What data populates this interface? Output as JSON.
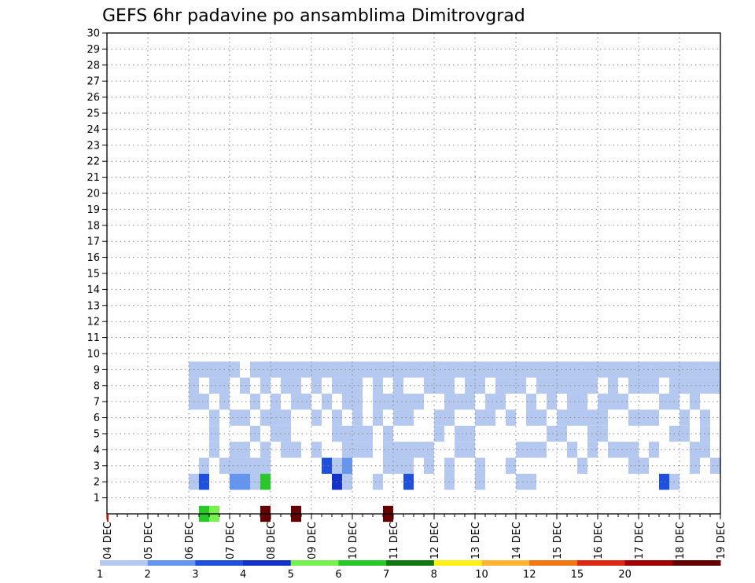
{
  "chart_data": {
    "type": "heatmap",
    "title": "GEFS 6hr padavine po ansamblima Dimitrovgrad",
    "y_ticks": [
      "1",
      "2",
      "3",
      "4",
      "5",
      "6",
      "7",
      "8",
      "9",
      "10",
      "11",
      "12",
      "13",
      "14",
      "15",
      "16",
      "17",
      "18",
      "19",
      "20",
      "21",
      "22",
      "23",
      "24",
      "25",
      "26",
      "27",
      "28",
      "29",
      "30"
    ],
    "y_range": [
      0,
      30
    ],
    "x_ticks": [
      "04 DEC",
      "05 DEC",
      "06 DEC",
      "07 DEC",
      "08 DEC",
      "09 DEC",
      "10 DEC",
      "11 DEC",
      "12 DEC",
      "13 DEC",
      "14 DEC",
      "15 DEC",
      "16 DEC",
      "17 DEC",
      "18 DEC",
      "19 DEC"
    ],
    "x_range_days": [
      0,
      15
    ],
    "steps_per_day": 4,
    "grid": true,
    "legend": "bottom",
    "color_scale": {
      "bounds": [
        "1",
        "2",
        "3",
        "4",
        "5",
        "6",
        "7",
        "8",
        "10",
        "12",
        "15",
        "20"
      ],
      "colors": [
        "#b4c8f0",
        "#6496f0",
        "#1e50dc",
        "#1432c8",
        "#78f050",
        "#28c828",
        "#127812",
        "#fff014",
        "#ffb432",
        "#f07814",
        "#dc2814",
        "#a00000",
        "#640000"
      ]
    },
    "cells": [
      [
        0,
        9,
        6,
        1
      ],
      [
        0,
        10,
        5,
        1
      ],
      [
        0,
        18,
        25,
        1
      ],
      [
        0,
        27,
        22,
        1
      ],
      [
        0,
        15,
        27,
        1
      ],
      [
        2,
        8,
        1,
        1
      ],
      [
        2,
        9,
        3,
        1
      ],
      [
        2,
        12,
        2,
        1
      ],
      [
        2,
        13,
        2,
        1
      ],
      [
        2,
        14,
        1,
        1
      ],
      [
        2,
        15,
        6,
        1
      ],
      [
        2,
        22,
        4,
        1
      ],
      [
        2,
        23,
        1,
        1
      ],
      [
        2,
        26,
        1,
        1
      ],
      [
        2,
        29,
        3,
        1
      ],
      [
        2,
        33,
        1,
        1
      ],
      [
        2,
        36,
        1,
        1
      ],
      [
        2,
        40,
        1,
        1
      ],
      [
        2,
        41,
        1,
        1
      ],
      [
        2,
        54,
        3,
        1
      ],
      [
        2,
        55,
        1,
        1
      ],
      [
        3,
        9,
        1,
        1
      ],
      [
        3,
        11,
        1,
        1
      ],
      [
        3,
        12,
        1,
        1
      ],
      [
        3,
        13,
        1,
        1
      ],
      [
        3,
        14,
        1,
        1
      ],
      [
        3,
        15,
        1,
        1
      ],
      [
        3,
        21,
        3,
        1
      ],
      [
        3,
        22,
        1,
        1
      ],
      [
        3,
        23,
        2,
        1
      ],
      [
        3,
        27,
        1,
        1
      ],
      [
        3,
        28,
        1,
        1
      ],
      [
        3,
        29,
        1,
        1
      ],
      [
        3,
        31,
        1,
        1
      ],
      [
        3,
        33,
        1,
        1
      ],
      [
        3,
        36,
        1,
        1
      ],
      [
        3,
        39,
        1,
        1
      ],
      [
        3,
        46,
        1,
        1
      ],
      [
        3,
        51,
        1,
        1
      ],
      [
        3,
        52,
        1,
        1
      ],
      [
        3,
        57,
        1,
        1
      ],
      [
        3,
        59,
        1,
        1
      ],
      [
        4,
        10,
        1,
        1
      ],
      [
        4,
        12,
        1,
        1
      ],
      [
        4,
        13,
        1,
        1
      ],
      [
        4,
        15,
        1,
        1
      ],
      [
        4,
        17,
        1,
        1
      ],
      [
        4,
        18,
        1,
        1
      ],
      [
        4,
        20,
        1,
        1
      ],
      [
        4,
        23,
        1,
        1
      ],
      [
        4,
        24,
        1,
        1
      ],
      [
        4,
        25,
        1,
        1
      ],
      [
        4,
        27,
        1,
        1
      ],
      [
        4,
        28,
        1,
        1
      ],
      [
        4,
        29,
        1,
        1
      ],
      [
        4,
        30,
        1,
        1
      ],
      [
        4,
        31,
        1,
        1
      ],
      [
        4,
        34,
        1,
        1
      ],
      [
        4,
        35,
        1,
        1
      ],
      [
        4,
        40,
        1,
        1
      ],
      [
        4,
        41,
        1,
        1
      ],
      [
        4,
        42,
        1,
        1
      ],
      [
        4,
        45,
        1,
        1
      ],
      [
        4,
        47,
        1,
        1
      ],
      [
        4,
        49,
        1,
        1
      ],
      [
        4,
        50,
        1,
        1
      ],
      [
        4,
        51,
        1,
        1
      ],
      [
        4,
        53,
        1,
        1
      ],
      [
        4,
        57,
        1,
        1
      ],
      [
        4,
        58,
        1,
        1
      ],
      [
        5,
        10,
        1,
        1
      ],
      [
        5,
        14,
        1,
        1
      ],
      [
        5,
        16,
        1,
        1
      ],
      [
        5,
        17,
        1,
        1
      ],
      [
        5,
        22,
        1,
        1
      ],
      [
        5,
        23,
        1,
        1
      ],
      [
        5,
        24,
        1,
        1
      ],
      [
        5,
        25,
        1,
        1
      ],
      [
        5,
        27,
        1,
        1
      ],
      [
        5,
        32,
        1,
        1
      ],
      [
        5,
        34,
        1,
        1
      ],
      [
        5,
        35,
        1,
        1
      ],
      [
        5,
        43,
        1,
        1
      ],
      [
        5,
        44,
        1,
        1
      ],
      [
        5,
        47,
        1,
        1
      ],
      [
        5,
        48,
        1,
        1
      ],
      [
        5,
        55,
        1,
        1
      ],
      [
        5,
        56,
        1,
        1
      ],
      [
        5,
        58,
        1,
        1
      ],
      [
        6,
        10,
        1,
        1
      ],
      [
        6,
        12,
        1,
        1
      ],
      [
        6,
        13,
        1,
        1
      ],
      [
        6,
        15,
        1,
        1
      ],
      [
        6,
        16,
        1,
        1
      ],
      [
        6,
        17,
        1,
        1
      ],
      [
        6,
        20,
        1,
        1
      ],
      [
        6,
        22,
        1,
        1
      ],
      [
        6,
        24,
        1,
        1
      ],
      [
        6,
        26,
        1,
        1
      ],
      [
        6,
        28,
        1,
        1
      ],
      [
        6,
        29,
        1,
        1
      ],
      [
        6,
        32,
        1,
        1
      ],
      [
        6,
        33,
        1,
        1
      ],
      [
        6,
        36,
        1,
        1
      ],
      [
        6,
        37,
        1,
        1
      ],
      [
        6,
        39,
        1,
        1
      ],
      [
        6,
        41,
        1,
        1
      ],
      [
        6,
        42,
        1,
        1
      ],
      [
        6,
        44,
        1,
        1
      ],
      [
        6,
        45,
        1,
        1
      ],
      [
        6,
        46,
        1,
        1
      ],
      [
        6,
        47,
        1,
        1
      ],
      [
        6,
        48,
        1,
        1
      ],
      [
        6,
        51,
        1,
        1
      ],
      [
        6,
        52,
        1,
        1
      ],
      [
        6,
        53,
        1,
        1
      ],
      [
        6,
        56,
        1,
        1
      ],
      [
        6,
        58,
        1,
        1
      ],
      [
        7,
        8,
        1,
        1
      ],
      [
        7,
        9,
        1,
        1
      ],
      [
        7,
        11,
        1,
        1
      ],
      [
        7,
        14,
        1,
        1
      ],
      [
        7,
        16,
        1,
        1
      ],
      [
        7,
        18,
        1,
        1
      ],
      [
        7,
        19,
        1,
        1
      ],
      [
        7,
        21,
        1,
        1
      ],
      [
        7,
        23,
        1,
        1
      ],
      [
        7,
        24,
        1,
        1
      ],
      [
        7,
        26,
        1,
        1
      ],
      [
        7,
        27,
        1,
        1
      ],
      [
        7,
        28,
        1,
        1
      ],
      [
        7,
        29,
        1,
        1
      ],
      [
        7,
        30,
        1,
        1
      ],
      [
        7,
        33,
        1,
        1
      ],
      [
        7,
        34,
        1,
        1
      ],
      [
        7,
        35,
        1,
        1
      ],
      [
        7,
        37,
        1,
        1
      ],
      [
        7,
        38,
        1,
        1
      ],
      [
        7,
        41,
        1,
        1
      ],
      [
        7,
        43,
        1,
        1
      ],
      [
        7,
        45,
        1,
        1
      ],
      [
        7,
        46,
        1,
        1
      ],
      [
        7,
        48,
        1,
        1
      ],
      [
        7,
        49,
        1,
        1
      ],
      [
        7,
        50,
        1,
        1
      ],
      [
        7,
        54,
        1,
        1
      ],
      [
        7,
        55,
        1,
        1
      ],
      [
        7,
        57,
        1,
        1
      ],
      [
        8,
        8,
        1,
        1
      ],
      [
        8,
        10,
        1,
        1
      ],
      [
        8,
        11,
        1,
        1
      ],
      [
        8,
        13,
        1,
        1
      ],
      [
        8,
        15,
        1,
        1
      ],
      [
        8,
        17,
        1,
        1
      ],
      [
        8,
        18,
        1,
        1
      ],
      [
        8,
        20,
        1,
        1
      ],
      [
        8,
        22,
        1,
        1
      ],
      [
        8,
        23,
        1,
        1
      ],
      [
        8,
        24,
        1,
        1
      ],
      [
        8,
        26,
        1,
        1
      ],
      [
        8,
        28,
        1,
        1
      ],
      [
        8,
        31,
        1,
        1
      ],
      [
        8,
        32,
        1,
        1
      ],
      [
        8,
        33,
        1,
        1
      ],
      [
        8,
        35,
        1,
        1
      ],
      [
        8,
        36,
        1,
        1
      ],
      [
        8,
        38,
        1,
        1
      ],
      [
        8,
        39,
        1,
        1
      ],
      [
        8,
        40,
        1,
        1
      ],
      [
        8,
        42,
        1,
        1
      ],
      [
        8,
        43,
        1,
        1
      ],
      [
        8,
        44,
        1,
        1
      ],
      [
        8,
        45,
        1,
        1
      ],
      [
        8,
        46,
        1,
        1
      ],
      [
        8,
        47,
        1,
        1
      ],
      [
        8,
        49,
        1,
        1
      ],
      [
        8,
        51,
        1,
        1
      ],
      [
        8,
        52,
        1,
        1
      ],
      [
        8,
        53,
        1,
        1
      ],
      [
        8,
        55,
        1,
        1
      ],
      [
        8,
        56,
        1,
        1
      ],
      [
        8,
        57,
        1,
        1
      ],
      [
        8,
        58,
        1,
        1
      ],
      [
        8,
        59,
        1,
        1
      ],
      [
        9,
        8,
        1,
        1
      ],
      [
        9,
        9,
        1,
        1
      ],
      [
        9,
        10,
        1,
        1
      ],
      [
        9,
        11,
        1,
        1
      ],
      [
        9,
        12,
        1,
        1
      ],
      [
        9,
        14,
        1,
        1
      ],
      [
        9,
        15,
        1,
        1
      ],
      [
        9,
        16,
        1,
        1
      ],
      [
        9,
        17,
        1,
        1
      ],
      [
        9,
        18,
        1,
        1
      ],
      [
        9,
        19,
        1,
        1
      ],
      [
        9,
        20,
        1,
        1
      ],
      [
        9,
        21,
        1,
        1
      ],
      [
        9,
        22,
        1,
        1
      ],
      [
        9,
        23,
        1,
        1
      ],
      [
        9,
        24,
        1,
        1
      ],
      [
        9,
        25,
        1,
        1
      ],
      [
        9,
        26,
        1,
        1
      ],
      [
        9,
        27,
        1,
        1
      ],
      [
        9,
        28,
        1,
        1
      ],
      [
        9,
        29,
        1,
        1
      ],
      [
        9,
        30,
        1,
        1
      ],
      [
        9,
        31,
        1,
        1
      ],
      [
        9,
        32,
        1,
        1
      ],
      [
        9,
        33,
        1,
        1
      ],
      [
        9,
        34,
        1,
        1
      ],
      [
        9,
        35,
        1,
        1
      ],
      [
        9,
        36,
        1,
        1
      ],
      [
        9,
        37,
        1,
        1
      ],
      [
        9,
        38,
        1,
        1
      ],
      [
        9,
        39,
        1,
        1
      ],
      [
        9,
        40,
        1,
        1
      ],
      [
        9,
        41,
        1,
        1
      ],
      [
        9,
        42,
        1,
        1
      ],
      [
        9,
        43,
        1,
        1
      ],
      [
        9,
        44,
        1,
        1
      ],
      [
        9,
        45,
        1,
        1
      ],
      [
        9,
        46,
        1,
        1
      ],
      [
        9,
        47,
        1,
        1
      ],
      [
        9,
        48,
        1,
        1
      ],
      [
        9,
        49,
        1,
        1
      ],
      [
        9,
        50,
        1,
        1
      ],
      [
        9,
        51,
        1,
        1
      ],
      [
        9,
        52,
        1,
        1
      ],
      [
        9,
        53,
        1,
        1
      ],
      [
        9,
        54,
        1,
        1
      ],
      [
        9,
        55,
        1,
        1
      ],
      [
        9,
        56,
        1,
        1
      ],
      [
        9,
        57,
        1,
        1
      ],
      [
        9,
        58,
        1,
        1
      ],
      [
        9,
        59,
        1,
        1
      ]
    ],
    "cells_note": ""
  }
}
